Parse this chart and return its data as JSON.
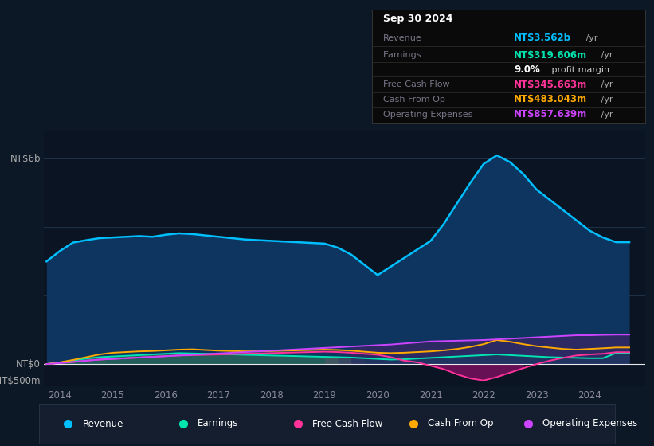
{
  "bg_color": "#0d1826",
  "plot_bg": "#0a1422",
  "title_box": {
    "date": "Sep 30 2024",
    "revenue_val": "NT$3.562b",
    "earnings_val": "NT$319.606m",
    "profit_margin": "9.0%",
    "fcf_val": "NT$345.663m",
    "cashfromop_val": "NT$483.043m",
    "opex_val": "NT$857.639m"
  },
  "ylabel_top": "NT$6b",
  "ylabel_zero": "NT$0",
  "ylabel_bottom": "-NT$500m",
  "years": [
    2013.75,
    2014.0,
    2014.25,
    2014.5,
    2014.75,
    2015.0,
    2015.25,
    2015.5,
    2015.75,
    2016.0,
    2016.25,
    2016.5,
    2016.75,
    2017.0,
    2017.25,
    2017.5,
    2017.75,
    2018.0,
    2018.25,
    2018.5,
    2018.75,
    2019.0,
    2019.25,
    2019.5,
    2019.75,
    2020.0,
    2020.25,
    2020.5,
    2020.75,
    2021.0,
    2021.25,
    2021.5,
    2021.75,
    2022.0,
    2022.25,
    2022.5,
    2022.75,
    2023.0,
    2023.25,
    2023.5,
    2023.75,
    2024.0,
    2024.25,
    2024.5,
    2024.75
  ],
  "revenue": [
    3.0,
    3.3,
    3.55,
    3.62,
    3.68,
    3.7,
    3.72,
    3.74,
    3.72,
    3.78,
    3.82,
    3.8,
    3.76,
    3.72,
    3.68,
    3.64,
    3.62,
    3.6,
    3.58,
    3.56,
    3.54,
    3.52,
    3.4,
    3.2,
    2.9,
    2.6,
    2.85,
    3.1,
    3.35,
    3.6,
    4.1,
    4.7,
    5.3,
    5.85,
    6.1,
    5.9,
    5.55,
    5.1,
    4.8,
    4.5,
    4.2,
    3.9,
    3.7,
    3.562,
    3.562
  ],
  "earnings": [
    0.0,
    0.04,
    0.1,
    0.16,
    0.2,
    0.22,
    0.24,
    0.26,
    0.28,
    0.3,
    0.32,
    0.31,
    0.3,
    0.29,
    0.28,
    0.27,
    0.26,
    0.25,
    0.24,
    0.23,
    0.22,
    0.21,
    0.2,
    0.19,
    0.17,
    0.15,
    0.13,
    0.14,
    0.16,
    0.18,
    0.2,
    0.22,
    0.24,
    0.26,
    0.28,
    0.26,
    0.24,
    0.22,
    0.2,
    0.19,
    0.18,
    0.17,
    0.17,
    0.3196,
    0.3196
  ],
  "free_cash_flow": [
    0.0,
    0.03,
    0.06,
    0.1,
    0.13,
    0.15,
    0.17,
    0.19,
    0.21,
    0.23,
    0.25,
    0.26,
    0.27,
    0.28,
    0.29,
    0.3,
    0.31,
    0.32,
    0.33,
    0.34,
    0.35,
    0.36,
    0.35,
    0.33,
    0.3,
    0.27,
    0.2,
    0.1,
    0.05,
    -0.05,
    -0.15,
    -0.3,
    -0.42,
    -0.48,
    -0.38,
    -0.25,
    -0.12,
    0.0,
    0.1,
    0.18,
    0.25,
    0.28,
    0.3,
    0.3457,
    0.3457
  ],
  "cash_from_op": [
    0.0,
    0.05,
    0.12,
    0.2,
    0.28,
    0.33,
    0.35,
    0.37,
    0.38,
    0.4,
    0.42,
    0.43,
    0.41,
    0.39,
    0.38,
    0.37,
    0.37,
    0.38,
    0.39,
    0.4,
    0.41,
    0.42,
    0.41,
    0.39,
    0.36,
    0.33,
    0.32,
    0.33,
    0.35,
    0.37,
    0.4,
    0.44,
    0.5,
    0.58,
    0.7,
    0.65,
    0.58,
    0.52,
    0.48,
    0.44,
    0.42,
    0.44,
    0.46,
    0.483,
    0.483
  ],
  "opex": [
    0.0,
    0.03,
    0.06,
    0.1,
    0.13,
    0.15,
    0.17,
    0.19,
    0.21,
    0.23,
    0.25,
    0.27,
    0.29,
    0.31,
    0.33,
    0.35,
    0.37,
    0.39,
    0.41,
    0.43,
    0.45,
    0.47,
    0.49,
    0.51,
    0.53,
    0.55,
    0.57,
    0.6,
    0.63,
    0.66,
    0.67,
    0.68,
    0.69,
    0.7,
    0.72,
    0.74,
    0.76,
    0.78,
    0.8,
    0.82,
    0.84,
    0.84,
    0.85,
    0.8576,
    0.8576
  ],
  "revenue_color": "#00bfff",
  "earnings_color": "#00e5b0",
  "fcf_color": "#ff3399",
  "cashfromop_color": "#ffaa00",
  "opex_color": "#cc44ff",
  "revenue_fill": "#0d3560",
  "earnings_fill_color": "#2d6b5a",
  "fcf_fill_neg_color": "#7a1060",
  "opex_fill_color": "#442266",
  "xtick_labels": [
    "2014",
    "2015",
    "2016",
    "2017",
    "2018",
    "2019",
    "2020",
    "2021",
    "2022",
    "2023",
    "2024"
  ],
  "xtick_values": [
    2014,
    2015,
    2016,
    2017,
    2018,
    2019,
    2020,
    2021,
    2022,
    2023,
    2024
  ],
  "ylim_top": 6.8,
  "ylim_bottom": -0.65,
  "legend_items": [
    "Revenue",
    "Earnings",
    "Free Cash Flow",
    "Cash From Op",
    "Operating Expenses"
  ],
  "legend_colors": [
    "#00bfff",
    "#00e5b0",
    "#ff3399",
    "#ffaa00",
    "#cc44ff"
  ]
}
